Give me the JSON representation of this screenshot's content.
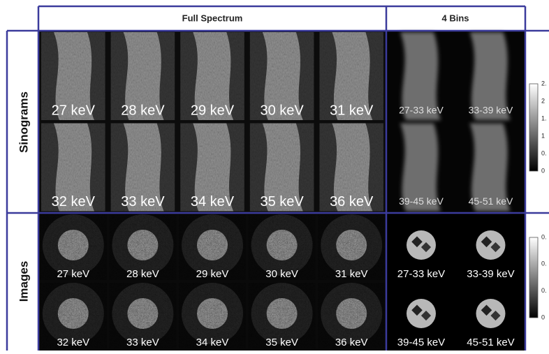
{
  "header": {
    "columns": [
      "Full Spectrum",
      "4 Bins"
    ]
  },
  "rows": [
    {
      "label": "Sinograms",
      "full_spectrum": [
        "27 keV",
        "28 keV",
        "29 keV",
        "30 keV",
        "31 keV",
        "32 keV",
        "33 keV",
        "34 keV",
        "35 keV",
        "36 keV"
      ],
      "bins": [
        "27-33 keV",
        "33-39 keV",
        "39-45 keV",
        "45-51 keV"
      ],
      "colorbar": [
        "2.",
        "2",
        "1.",
        "1",
        "0.",
        "0"
      ]
    },
    {
      "label": "Images",
      "full_spectrum": [
        "27 keV",
        "28 keV",
        "29 keV",
        "30 keV",
        "31 keV",
        "32 keV",
        "33 keV",
        "34 keV",
        "35 keV",
        "36 keV"
      ],
      "bins": [
        "27-33 keV",
        "33-39 keV",
        "39-45 keV",
        "45-51 keV"
      ],
      "colorbar": [
        "0.",
        "0.",
        "0.",
        "0"
      ]
    }
  ]
}
